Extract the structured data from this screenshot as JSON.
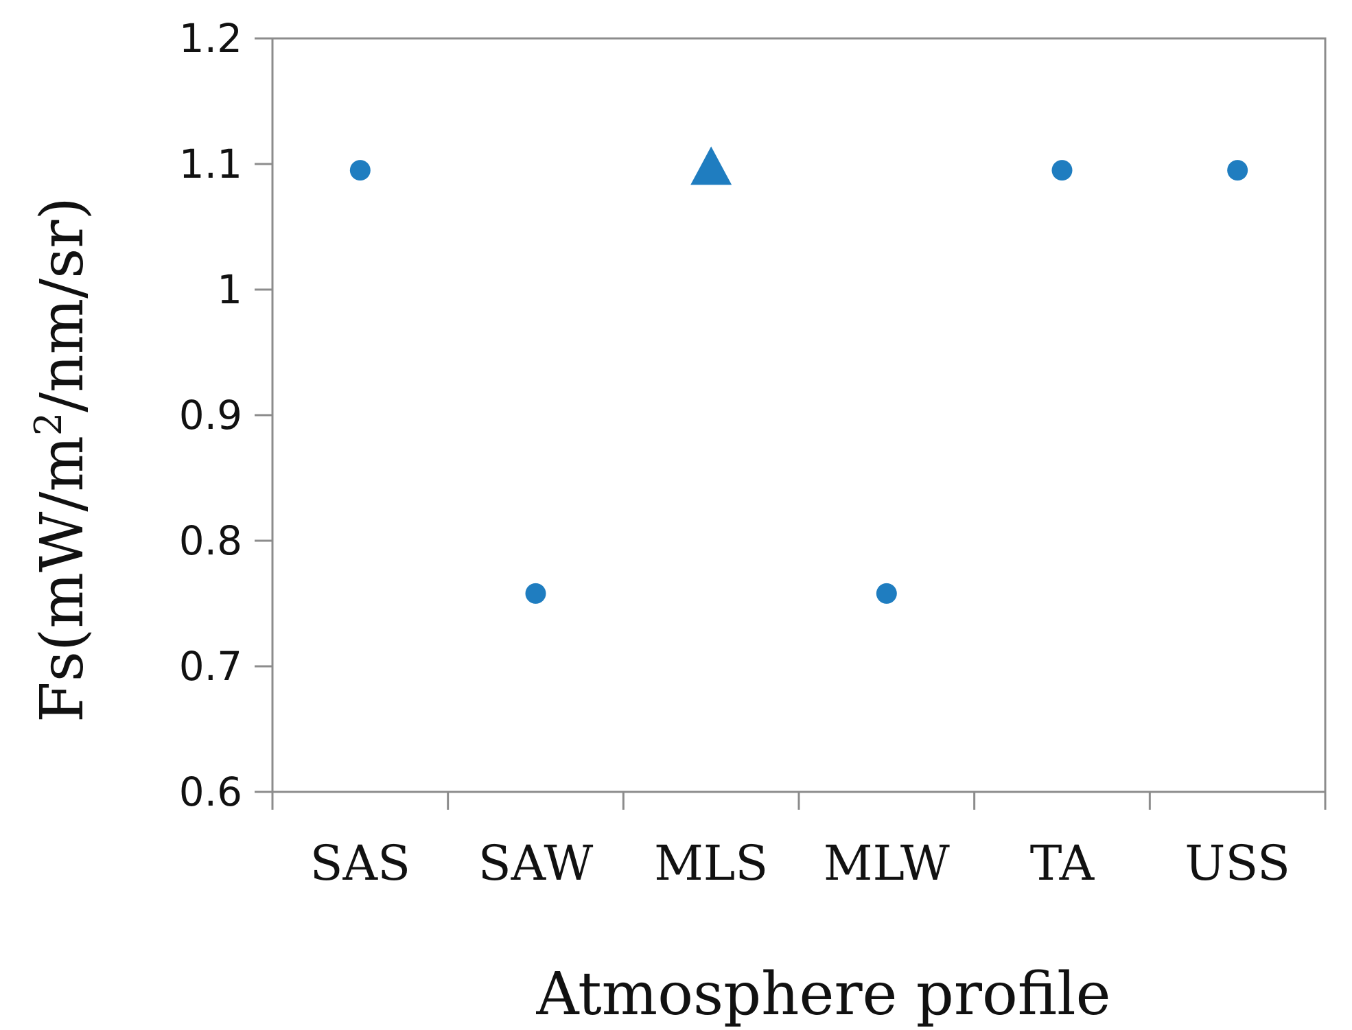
{
  "chart_data": {
    "type": "scatter",
    "title": "",
    "xlabel": "Atmosphere profile",
    "ylabel": {
      "prefix": "Fs(mW/m",
      "superscript": "2",
      "suffix": "/nm/sr)"
    },
    "categories": [
      "SAS",
      "SAW",
      "MLS",
      "MLW",
      "TA",
      "USS"
    ],
    "values": [
      1.095,
      0.758,
      1.095,
      0.758,
      1.095,
      1.095
    ],
    "markers": [
      "circle",
      "circle",
      "triangle",
      "circle",
      "circle",
      "circle"
    ],
    "ylim": [
      0.6,
      1.2
    ],
    "yticks": [
      "0.6",
      "0.7",
      "0.8",
      "0.9",
      "1",
      "1.1",
      "1.2"
    ],
    "grid": false,
    "legend": "none",
    "colors": {
      "marker": "#1f7dc0",
      "axis": "#8c8c8c"
    }
  }
}
